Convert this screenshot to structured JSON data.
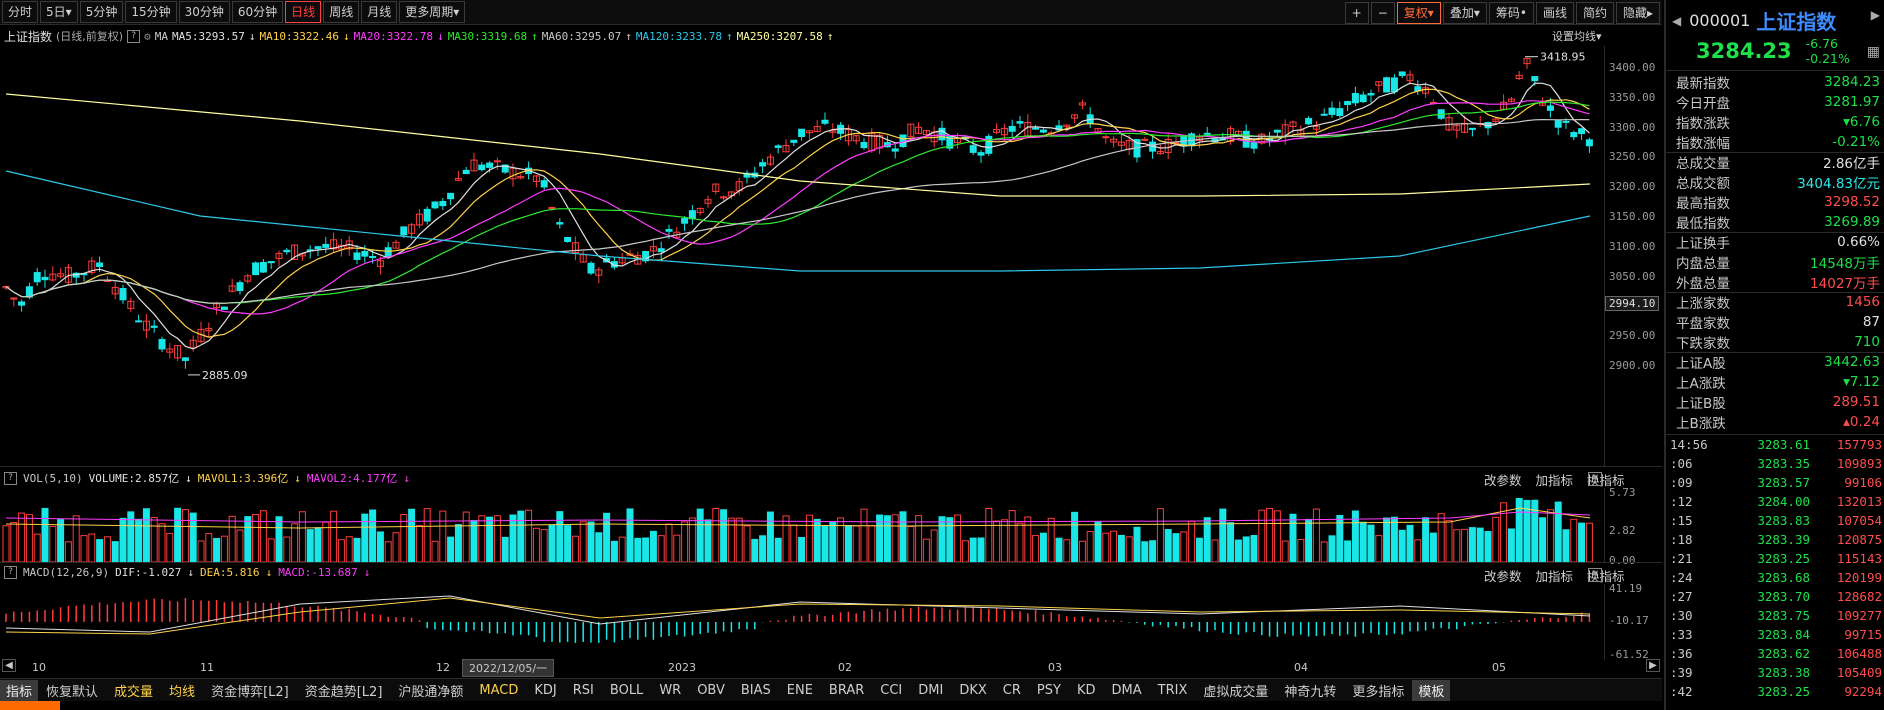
{
  "toolbar": {
    "periods": [
      {
        "label": "分时",
        "active": false
      },
      {
        "label": "5日▾",
        "active": false
      },
      {
        "label": "5分钟",
        "active": false
      },
      {
        "label": "15分钟",
        "active": false
      },
      {
        "label": "30分钟",
        "active": false
      },
      {
        "label": "60分钟",
        "active": false
      },
      {
        "label": "日线",
        "active": true
      },
      {
        "label": "周线",
        "active": false
      },
      {
        "label": "月线",
        "active": false
      },
      {
        "label": "更多周期▾",
        "active": false
      }
    ],
    "right": [
      {
        "label": "+",
        "hl": false
      },
      {
        "label": "−",
        "hl": false
      },
      {
        "label": "复权▾",
        "hl": true
      },
      {
        "label": "叠加▾",
        "hl": false
      },
      {
        "label": "筹码•",
        "hl": false
      },
      {
        "label": "画线",
        "hl": false
      },
      {
        "label": "简约",
        "hl": false
      },
      {
        "label": "隐藏▸",
        "hl": false
      }
    ]
  },
  "ma_legend": {
    "name": "上证指数",
    "mode": "(日线,前复权)",
    "ma_label": "MA",
    "items": [
      {
        "label": "MA5:3293.57",
        "color": "#e0e0e0",
        "arrow": "↓"
      },
      {
        "label": "MA10:3322.46",
        "color": "#ffd24a",
        "arrow": "↓"
      },
      {
        "label": "MA20:3322.78",
        "color": "#ff3cff",
        "arrow": "↓"
      },
      {
        "label": "MA30:3319.68",
        "color": "#2ee82e",
        "arrow": "↑"
      },
      {
        "label": "MA60:3295.07",
        "color": "#c8c8c8",
        "arrow": "↑"
      },
      {
        "label": "MA120:3233.78",
        "color": "#2ec8e8",
        "arrow": "↑"
      },
      {
        "label": "MA250:3207.58",
        "color": "#ffffa0",
        "arrow": "↑"
      }
    ],
    "settings": "设置均线▾"
  },
  "price_axis": {
    "ticks": [
      "3400.00",
      "3350.00",
      "3300.00",
      "3250.00",
      "3200.00",
      "3150.00",
      "3100.00",
      "3050.00",
      "3000.00",
      "2950.00",
      "2900.00"
    ],
    "highlight": "2994.10",
    "high_label": "3418.95",
    "low_label": "2885.09"
  },
  "volume": {
    "header": "VOL(5,10)",
    "volume": "VOLUME:2.857亿",
    "mavol1": "MAVOL1:3.396亿",
    "mavol2": "MAVOL2:4.177亿",
    "ticks": [
      "5.73",
      "2.82",
      "0.00"
    ],
    "tools": [
      "改参数",
      "加指标",
      "换指标"
    ]
  },
  "macd": {
    "header": "MACD(12,26,9)",
    "dif": "DIF:-1.027",
    "dea": "DEA:5.816",
    "macd": "MACD:-13.687",
    "ticks": [
      "41.19",
      "-10.17",
      "-61.52"
    ],
    "tools": [
      "改参数",
      "加指标",
      "换指标"
    ]
  },
  "xaxis": {
    "labels": [
      {
        "text": "10"
      },
      {
        "text": "11"
      },
      {
        "text": "12"
      },
      {
        "text": "2022/12/05/一"
      },
      {
        "text": "2023"
      },
      {
        "text": "02"
      },
      {
        "text": "03"
      },
      {
        "text": "04"
      },
      {
        "text": "05"
      }
    ]
  },
  "bottom_tabs": [
    {
      "label": "指标",
      "style": "tag"
    },
    {
      "label": "恢复默认",
      "style": ""
    },
    {
      "label": "成交量",
      "style": "y"
    },
    {
      "label": "均线",
      "style": "y"
    },
    {
      "label": "资金博弈[L2]",
      "style": ""
    },
    {
      "label": "资金趋势[L2]",
      "style": ""
    },
    {
      "label": "沪股通净额",
      "style": ""
    },
    {
      "label": "MACD",
      "style": "y"
    },
    {
      "label": "KDJ",
      "style": ""
    },
    {
      "label": "RSI",
      "style": ""
    },
    {
      "label": "BOLL",
      "style": ""
    },
    {
      "label": "WR",
      "style": ""
    },
    {
      "label": "OBV",
      "style": ""
    },
    {
      "label": "BIAS",
      "style": ""
    },
    {
      "label": "ENE",
      "style": ""
    },
    {
      "label": "BRAR",
      "style": ""
    },
    {
      "label": "CCI",
      "style": ""
    },
    {
      "label": "DMI",
      "style": ""
    },
    {
      "label": "DKX",
      "style": ""
    },
    {
      "label": "CR",
      "style": ""
    },
    {
      "label": "PSY",
      "style": ""
    },
    {
      "label": "KD",
      "style": ""
    },
    {
      "label": "DMA",
      "style": ""
    },
    {
      "label": "TRIX",
      "style": ""
    },
    {
      "label": "虚拟成交量",
      "style": ""
    },
    {
      "label": "神奇九转",
      "style": ""
    },
    {
      "label": "更多指标",
      "style": ""
    },
    {
      "label": "模板",
      "style": "tag"
    }
  ],
  "sidebar": {
    "code": "000001",
    "name": "上证指数",
    "price": "3284.23",
    "change": "-6.76",
    "change_pct": "-0.21%",
    "stats": [
      {
        "k": "最新指数",
        "v": "3284.23",
        "c": "#1ee04a"
      },
      {
        "k": "今日开盘",
        "v": "3281.97",
        "c": "#1ee04a"
      },
      {
        "k": "指数涨跌",
        "v": "▾6.76",
        "c": "#1ee04a"
      },
      {
        "k": "指数涨幅",
        "v": "-0.21%",
        "c": "#1ee04a"
      },
      {
        "k": "总成交量",
        "v": "2.86亿手",
        "c": "#e0e0e0"
      },
      {
        "k": "总成交额",
        "v": "3404.83亿元",
        "c": "#2ee8e8"
      },
      {
        "k": "最高指数",
        "v": "3298.52",
        "c": "#ff4d4d"
      },
      {
        "k": "最低指数",
        "v": "3269.89",
        "c": "#1ee04a"
      },
      {
        "k": "上证换手",
        "v": "0.66%",
        "c": "#e0e0e0"
      },
      {
        "k": "内盘总量",
        "v": "14548万手",
        "c": "#1ee04a"
      },
      {
        "k": "外盘总量",
        "v": "14027万手",
        "c": "#ff4d4d"
      },
      {
        "k": "上涨家数",
        "v": "1456",
        "c": "#ff4d4d"
      },
      {
        "k": "平盘家数",
        "v": "87",
        "c": "#e0e0e0"
      },
      {
        "k": "下跌家数",
        "v": "710",
        "c": "#1ee04a"
      },
      {
        "k": "上证A股",
        "v": "3442.63",
        "c": "#1ee04a"
      },
      {
        "k": "上A涨跌",
        "v": "▾7.12",
        "c": "#1ee04a"
      },
      {
        "k": "上证B股",
        "v": "289.51",
        "c": "#ff4d4d"
      },
      {
        "k": "上B涨跌",
        "v": "▴0.24",
        "c": "#ff4d4d"
      }
    ],
    "ticks": [
      {
        "t": "14:56",
        "p": "3283.61",
        "v": "157793"
      },
      {
        "t": ":06",
        "p": "3283.35",
        "v": "109893"
      },
      {
        "t": ":09",
        "p": "3283.57",
        "v": "99106"
      },
      {
        "t": ":12",
        "p": "3284.00",
        "v": "132013"
      },
      {
        "t": ":15",
        "p": "3283.83",
        "v": "107054"
      },
      {
        "t": ":18",
        "p": "3283.39",
        "v": "120875"
      },
      {
        "t": ":21",
        "p": "3283.25",
        "v": "115143"
      },
      {
        "t": ":24",
        "p": "3283.68",
        "v": "120199"
      },
      {
        "t": ":27",
        "p": "3283.70",
        "v": "128682"
      },
      {
        "t": ":30",
        "p": "3283.75",
        "v": "109277"
      },
      {
        "t": ":33",
        "p": "3283.84",
        "v": "99715"
      },
      {
        "t": ":36",
        "p": "3283.62",
        "v": "106488"
      },
      {
        "t": ":39",
        "p": "3283.38",
        "v": "105409"
      },
      {
        "t": ":42",
        "p": "3283.25",
        "v": "92294"
      }
    ]
  }
}
